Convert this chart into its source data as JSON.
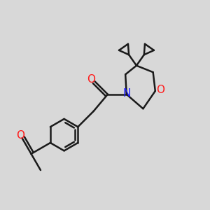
{
  "bg_color": "#d8d8d8",
  "bond_color": "#1a1a1a",
  "bond_width": 1.8,
  "N_color": "#1a1aff",
  "O_color": "#ff1a1a",
  "font_size": 11,
  "fig_size": [
    3.0,
    3.0
  ],
  "dpi": 100,
  "xlim": [
    0.0,
    9.5
  ],
  "ylim": [
    0.0,
    9.5
  ]
}
